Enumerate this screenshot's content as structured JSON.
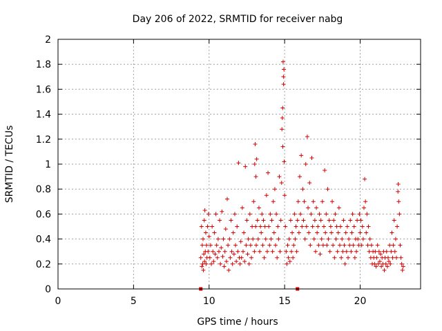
{
  "chart_data": {
    "type": "scatter",
    "title": "Day 206 of 2022, SRMTID for receiver nabg",
    "xlabel": "GPS time / hours",
    "ylabel": "SRMTID / TECUs",
    "xlim": [
      0,
      24
    ],
    "ylim": [
      0,
      2
    ],
    "xticks": [
      "0",
      "5",
      "10",
      "15",
      "20"
    ],
    "yticks": [
      "0",
      "0.2",
      "0.4",
      "0.6",
      "0.8",
      "1",
      "1.2",
      "1.4",
      "1.6",
      "1.8",
      "2"
    ],
    "grid": true,
    "legend": "none",
    "marker": "plus",
    "color": "#d40000",
    "series": [
      {
        "values": [
          [
            9.45,
            0.25
          ],
          [
            9.5,
            0.5
          ],
          [
            9.52,
            0.18
          ],
          [
            9.55,
            0.35
          ],
          [
            9.58,
            0.2
          ],
          [
            9.6,
            0.4
          ],
          [
            9.62,
            0.15
          ],
          [
            9.65,
            0.28
          ],
          [
            9.68,
            0.55
          ],
          [
            9.7,
            0.22
          ],
          [
            9.72,
            0.63
          ],
          [
            9.75,
            0.3
          ],
          [
            9.78,
            0.45
          ],
          [
            9.8,
            0.2
          ],
          [
            9.83,
            0.35
          ],
          [
            9.86,
            0.25
          ],
          [
            9.9,
            0.5
          ],
          [
            9.93,
            0.3
          ],
          [
            9.96,
            0.6
          ],
          [
            10.0,
            0.42
          ],
          [
            10.05,
            0.25
          ],
          [
            10.1,
            0.35
          ],
          [
            10.15,
            0.2
          ],
          [
            10.2,
            0.5
          ],
          [
            10.25,
            0.3
          ],
          [
            10.3,
            0.22
          ],
          [
            10.35,
            0.45
          ],
          [
            10.4,
            0.28
          ],
          [
            10.45,
            0.6
          ],
          [
            10.5,
            0.35
          ],
          [
            10.55,
            0.25
          ],
          [
            10.6,
            0.4
          ],
          [
            10.65,
            0.3
          ],
          [
            10.7,
            0.55
          ],
          [
            10.75,
            0.2
          ],
          [
            10.8,
            0.33
          ],
          [
            10.85,
            0.62
          ],
          [
            10.9,
            0.26
          ],
          [
            10.95,
            0.4
          ],
          [
            11.0,
            0.18
          ],
          [
            11.05,
            0.3
          ],
          [
            11.1,
            0.48
          ],
          [
            11.15,
            0.22
          ],
          [
            11.2,
            0.72
          ],
          [
            11.25,
            0.35
          ],
          [
            11.3,
            0.15
          ],
          [
            11.35,
            0.4
          ],
          [
            11.4,
            0.25
          ],
          [
            11.45,
            0.55
          ],
          [
            11.5,
            0.3
          ],
          [
            11.55,
            0.2
          ],
          [
            11.6,
            0.45
          ],
          [
            11.65,
            0.28
          ],
          [
            11.7,
            0.6
          ],
          [
            11.75,
            0.35
          ],
          [
            11.8,
            0.22
          ],
          [
            11.85,
            0.5
          ],
          [
            11.9,
            0.3
          ],
          [
            11.95,
            1.01
          ],
          [
            12.0,
            0.25
          ],
          [
            12.05,
            0.2
          ],
          [
            12.1,
            0.38
          ],
          [
            12.15,
            0.25
          ],
          [
            12.2,
            0.65
          ],
          [
            12.25,
            0.3
          ],
          [
            12.3,
            0.45
          ],
          [
            12.35,
            0.22
          ],
          [
            12.4,
            0.98
          ],
          [
            12.45,
            0.35
          ],
          [
            12.5,
            0.55
          ],
          [
            12.55,
            0.28
          ],
          [
            12.6,
            0.4
          ],
          [
            12.65,
            0.2
          ],
          [
            12.7,
            0.6
          ],
          [
            12.75,
            0.35
          ],
          [
            12.8,
            0.25
          ],
          [
            12.85,
            0.5
          ],
          [
            12.9,
            0.4
          ],
          [
            12.95,
            0.7
          ],
          [
            13.0,
            0.3
          ],
          [
            13.02,
            1.0
          ],
          [
            13.05,
            1.16
          ],
          [
            13.08,
            0.5
          ],
          [
            13.1,
            0.9
          ],
          [
            13.12,
            0.35
          ],
          [
            13.15,
            1.04
          ],
          [
            13.2,
            0.55
          ],
          [
            13.25,
            0.4
          ],
          [
            13.3,
            0.65
          ],
          [
            13.35,
            0.3
          ],
          [
            13.4,
            0.5
          ],
          [
            13.45,
            0.45
          ],
          [
            13.5,
            0.6
          ],
          [
            13.55,
            0.35
          ],
          [
            13.6,
            0.55
          ],
          [
            13.65,
            0.25
          ],
          [
            13.7,
            0.5
          ],
          [
            13.75,
            0.4
          ],
          [
            13.8,
            0.75
          ],
          [
            13.85,
            0.3
          ],
          [
            13.9,
            0.93
          ],
          [
            13.95,
            0.5
          ],
          [
            14.0,
            0.35
          ],
          [
            14.05,
            0.6
          ],
          [
            14.1,
            0.4
          ],
          [
            14.15,
            0.55
          ],
          [
            14.2,
            0.3
          ],
          [
            14.25,
            0.7
          ],
          [
            14.3,
            0.45
          ],
          [
            14.35,
            0.8
          ],
          [
            14.4,
            0.35
          ],
          [
            14.45,
            0.6
          ],
          [
            14.5,
            0.25
          ],
          [
            14.55,
            0.5
          ],
          [
            14.6,
            0.4
          ],
          [
            14.65,
            0.9
          ],
          [
            14.7,
            0.3
          ],
          [
            14.75,
            0.55
          ],
          [
            14.8,
            0.85
          ],
          [
            14.82,
            1.28
          ],
          [
            14.85,
            1.37
          ],
          [
            14.87,
            1.45
          ],
          [
            14.88,
            1.14
          ],
          [
            14.9,
            1.82
          ],
          [
            14.92,
            1.7
          ],
          [
            14.93,
            1.64
          ],
          [
            14.95,
            1.76
          ],
          [
            14.97,
            1.02
          ],
          [
            15.0,
            0.75
          ],
          [
            15.05,
            0.5
          ],
          [
            15.1,
            0.3
          ],
          [
            15.15,
            0.2
          ],
          [
            15.2,
            0.35
          ],
          [
            15.25,
            0.25
          ],
          [
            15.3,
            0.4
          ],
          [
            15.35,
            0.22
          ],
          [
            15.4,
            0.55
          ],
          [
            15.45,
            0.3
          ],
          [
            15.5,
            0.45
          ],
          [
            15.55,
            0.25
          ],
          [
            15.6,
            0.35
          ],
          [
            15.65,
            0.6
          ],
          [
            15.7,
            0.4
          ],
          [
            15.75,
            0.5
          ],
          [
            15.8,
            0.3
          ],
          [
            15.85,
            0.55
          ],
          [
            15.9,
            0.7
          ],
          [
            15.95,
            0.45
          ],
          [
            16.0,
            0.9
          ],
          [
            16.05,
            0.6
          ],
          [
            16.1,
            1.07
          ],
          [
            16.15,
            0.5
          ],
          [
            16.2,
            0.8
          ],
          [
            16.25,
            0.55
          ],
          [
            16.3,
            0.7
          ],
          [
            16.35,
            0.4
          ],
          [
            16.4,
            1.0
          ],
          [
            16.45,
            0.5
          ],
          [
            16.5,
            1.22
          ],
          [
            16.55,
            0.65
          ],
          [
            16.6,
            0.45
          ],
          [
            16.65,
            0.85
          ],
          [
            16.7,
            0.35
          ],
          [
            16.75,
            0.6
          ],
          [
            16.8,
            1.05
          ],
          [
            16.85,
            0.5
          ],
          [
            16.9,
            0.7
          ],
          [
            16.95,
            0.4
          ],
          [
            17.0,
            0.55
          ],
          [
            17.05,
            0.3
          ],
          [
            17.1,
            0.65
          ],
          [
            17.15,
            0.45
          ],
          [
            17.2,
            0.5
          ],
          [
            17.25,
            0.35
          ],
          [
            17.3,
            0.6
          ],
          [
            17.35,
            0.28
          ],
          [
            17.4,
            0.55
          ],
          [
            17.45,
            0.4
          ],
          [
            17.5,
            0.7
          ],
          [
            17.55,
            0.35
          ],
          [
            17.6,
            0.5
          ],
          [
            17.65,
            0.95
          ],
          [
            17.7,
            0.45
          ],
          [
            17.75,
            0.6
          ],
          [
            17.8,
            0.35
          ],
          [
            17.85,
            0.8
          ],
          [
            17.9,
            0.4
          ],
          [
            17.95,
            0.55
          ],
          [
            18.0,
            0.3
          ],
          [
            18.05,
            0.5
          ],
          [
            18.1,
            0.45
          ],
          [
            18.15,
            0.7
          ],
          [
            18.2,
            0.35
          ],
          [
            18.25,
            0.55
          ],
          [
            18.3,
            0.25
          ],
          [
            18.35,
            0.6
          ],
          [
            18.4,
            0.4
          ],
          [
            18.45,
            0.5
          ],
          [
            18.5,
            0.3
          ],
          [
            18.55,
            0.45
          ],
          [
            18.6,
            0.65
          ],
          [
            18.65,
            0.35
          ],
          [
            18.7,
            0.5
          ],
          [
            18.75,
            0.25
          ],
          [
            18.8,
            0.4
          ],
          [
            18.85,
            0.3
          ],
          [
            18.9,
            0.55
          ],
          [
            18.95,
            0.35
          ],
          [
            19.0,
            0.2
          ],
          [
            19.05,
            0.45
          ],
          [
            19.1,
            0.3
          ],
          [
            19.15,
            0.5
          ],
          [
            19.2,
            0.25
          ],
          [
            19.25,
            0.4
          ],
          [
            19.3,
            0.35
          ],
          [
            19.35,
            0.55
          ],
          [
            19.4,
            0.3
          ],
          [
            19.45,
            0.45
          ],
          [
            19.5,
            0.6
          ],
          [
            19.55,
            0.35
          ],
          [
            19.6,
            0.5
          ],
          [
            19.65,
            0.25
          ],
          [
            19.7,
            0.4
          ],
          [
            19.75,
            0.3
          ],
          [
            19.8,
            0.55
          ],
          [
            19.85,
            0.4
          ],
          [
            19.9,
            0.35
          ],
          [
            19.95,
            0.6
          ],
          [
            20.0,
            0.45
          ],
          [
            20.05,
            0.55
          ],
          [
            20.1,
            0.35
          ],
          [
            20.15,
            0.5
          ],
          [
            20.2,
            0.4
          ],
          [
            20.25,
            0.65
          ],
          [
            20.3,
            0.88
          ],
          [
            20.35,
            0.7
          ],
          [
            20.4,
            0.45
          ],
          [
            20.45,
            0.6
          ],
          [
            20.5,
            0.35
          ],
          [
            20.55,
            0.5
          ],
          [
            20.6,
            0.3
          ],
          [
            20.65,
            0.4
          ],
          [
            20.7,
            0.25
          ],
          [
            20.75,
            0.35
          ],
          [
            20.8,
            0.2
          ],
          [
            20.85,
            0.3
          ],
          [
            20.9,
            0.25
          ],
          [
            20.95,
            0.2
          ],
          [
            21.0,
            0.3
          ],
          [
            21.05,
            0.18
          ],
          [
            21.1,
            0.25
          ],
          [
            21.15,
            0.35
          ],
          [
            21.2,
            0.2
          ],
          [
            21.25,
            0.3
          ],
          [
            21.3,
            0.22
          ],
          [
            21.35,
            0.28
          ],
          [
            21.4,
            0.18
          ],
          [
            21.45,
            0.25
          ],
          [
            21.5,
            0.2
          ],
          [
            21.55,
            0.3
          ],
          [
            21.6,
            0.15
          ],
          [
            21.65,
            0.25
          ],
          [
            21.7,
            0.2
          ],
          [
            21.75,
            0.3
          ],
          [
            21.8,
            0.18
          ],
          [
            21.85,
            0.25
          ],
          [
            21.9,
            0.22
          ],
          [
            21.95,
            0.35
          ],
          [
            22.0,
            0.2
          ],
          [
            22.05,
            0.3
          ],
          [
            22.1,
            0.45
          ],
          [
            22.15,
            0.25
          ],
          [
            22.2,
            0.35
          ],
          [
            22.25,
            0.55
          ],
          [
            22.3,
            0.3
          ],
          [
            22.35,
            0.4
          ],
          [
            22.4,
            0.25
          ],
          [
            22.45,
            0.5
          ],
          [
            22.5,
            0.78
          ],
          [
            22.52,
            0.84
          ],
          [
            22.55,
            0.7
          ],
          [
            22.6,
            0.6
          ],
          [
            22.65,
            0.35
          ],
          [
            22.7,
            0.25
          ],
          [
            22.75,
            0.2
          ],
          [
            22.8,
            0.15
          ],
          [
            22.85,
            0.18
          ]
        ]
      },
      {
        "name": "",
        "marker": "square",
        "values": [
          [
            9.45,
            0.0
          ],
          [
            15.85,
            0.0
          ]
        ]
      }
    ]
  }
}
